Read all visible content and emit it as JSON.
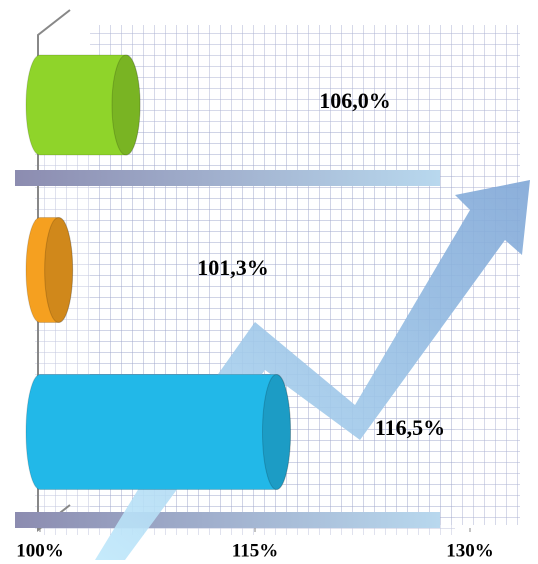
{
  "chart_data": {
    "type": "bar",
    "orientation": "horizontal",
    "series": [
      {
        "values": [
          106.0,
          101.3,
          116.5
        ],
        "value_labels": [
          "106,0%",
          "101,3%",
          "116,5%"
        ],
        "colors": [
          "#8fd42a",
          "#f5a020",
          "#22b8e8"
        ]
      }
    ],
    "xlim": [
      100,
      130
    ],
    "xticks": [
      {
        "value": 100,
        "label": "100%"
      },
      {
        "value": 115,
        "label": "115%"
      },
      {
        "value": 130,
        "label": "130%"
      }
    ]
  }
}
